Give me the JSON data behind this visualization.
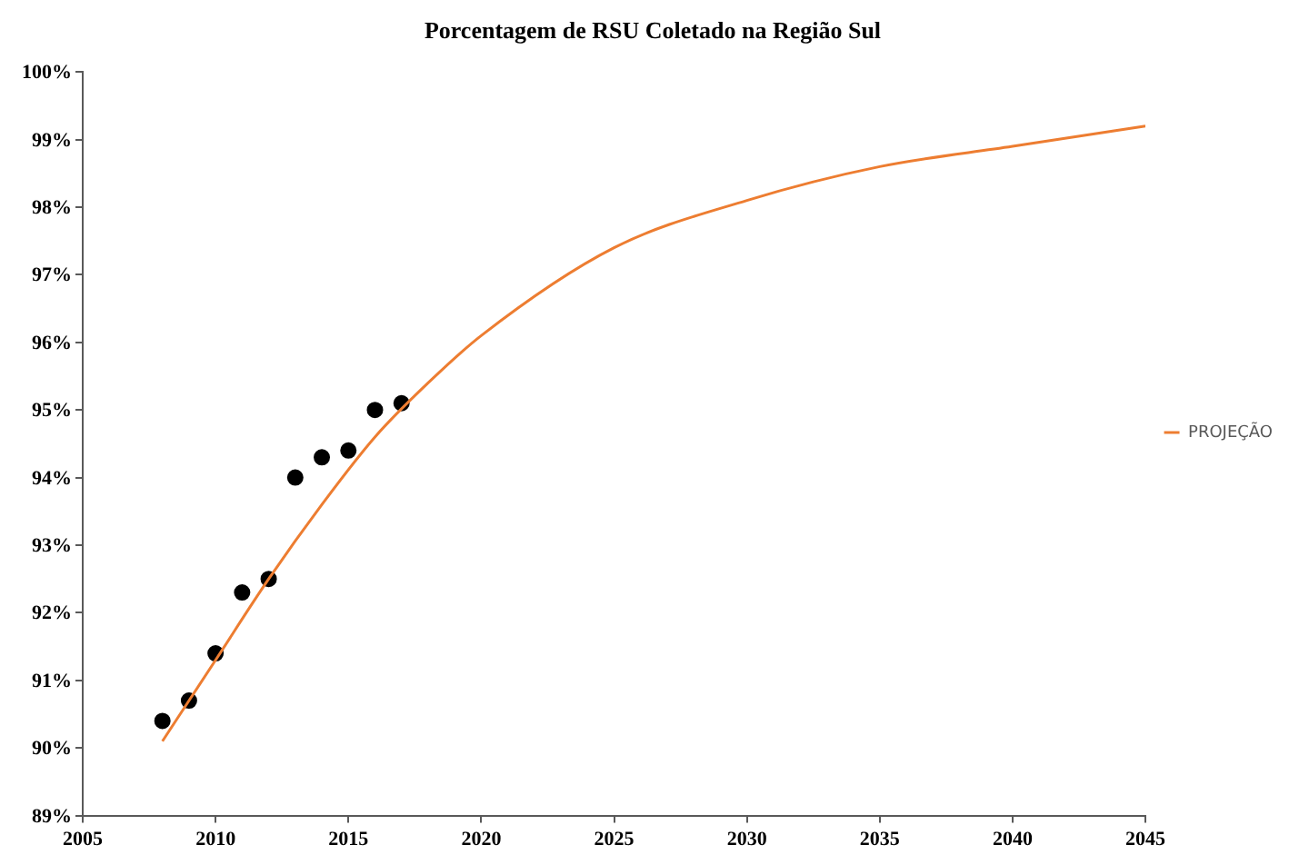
{
  "chart_data": {
    "type": "scatter",
    "title": "Porcentagem de RSU Coletado na Região Sul",
    "xlim": [
      2005,
      2045
    ],
    "xticks": [
      2005,
      2010,
      2015,
      2020,
      2025,
      2030,
      2035,
      2040,
      2045
    ],
    "ylim": [
      89,
      100
    ],
    "yticks": [
      {
        "value": 89,
        "label": "89%"
      },
      {
        "value": 90,
        "label": "90%"
      },
      {
        "value": 91,
        "label": "91%"
      },
      {
        "value": 92,
        "label": "92%"
      },
      {
        "value": 93,
        "label": "93%"
      },
      {
        "value": 94,
        "label": "94%"
      },
      {
        "value": 95,
        "label": "95%"
      },
      {
        "value": 96,
        "label": "96%"
      },
      {
        "value": 97,
        "label": "97%"
      },
      {
        "value": 98,
        "label": "98%"
      },
      {
        "value": 99,
        "label": "99%"
      },
      {
        "value": 100,
        "label": "100%"
      }
    ],
    "grid": false,
    "legend": "right",
    "marker": "circle",
    "series": [
      {
        "name": "PROJEÇÃO",
        "type": "line",
        "color": "#ed7d31",
        "marker": "none",
        "line_style": "solid",
        "x": [
          2008,
          2010,
          2012,
          2014,
          2016,
          2018,
          2020,
          2025,
          2030,
          2035,
          2040,
          2045
        ],
        "values": [
          90.1,
          91.3,
          92.5,
          93.6,
          94.6,
          95.4,
          96.1,
          97.4,
          98.1,
          98.6,
          98.9,
          99.2
        ]
      },
      {
        "color": "#000000",
        "x": [
          2008,
          2009,
          2010,
          2011,
          2012,
          2013,
          2014,
          2015,
          2016,
          2017
        ],
        "values": [
          90.4,
          90.7,
          91.4,
          92.3,
          92.5,
          94.0,
          94.3,
          94.4,
          95.0,
          95.1
        ]
      }
    ]
  }
}
